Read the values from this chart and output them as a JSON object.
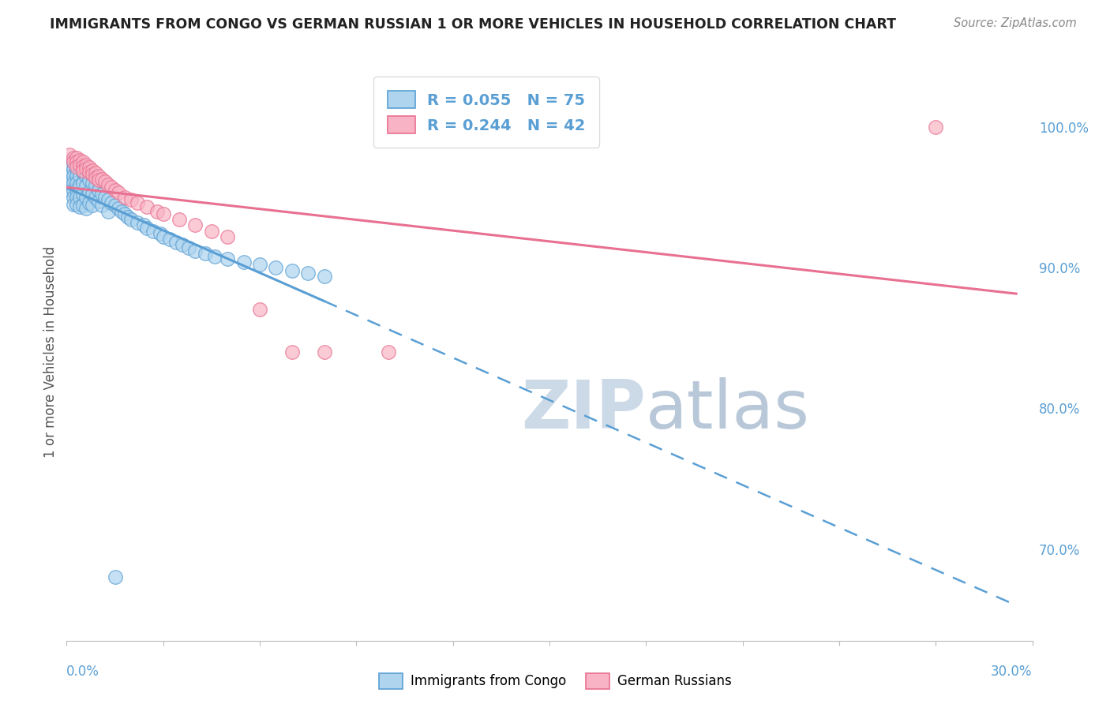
{
  "title": "IMMIGRANTS FROM CONGO VS GERMAN RUSSIAN 1 OR MORE VEHICLES IN HOUSEHOLD CORRELATION CHART",
  "source": "Source: ZipAtlas.com",
  "ylabel": "1 or more Vehicles in Household",
  "yticks": [
    0.7,
    0.8,
    0.9,
    1.0
  ],
  "ytick_labels": [
    "70.0%",
    "80.0%",
    "90.0%",
    "100.0%"
  ],
  "xlim": [
    0.0,
    0.3
  ],
  "ylim": [
    0.635,
    1.045
  ],
  "legend_R_blue": "R = 0.055",
  "legend_N_blue": "N = 75",
  "legend_R_pink": "R = 0.244",
  "legend_N_pink": "N = 42",
  "blue_fill": "#aed4ee",
  "blue_edge": "#5a9fd4",
  "pink_fill": "#f8b4c4",
  "pink_edge": "#e87090",
  "blue_line": "#5a9fd4",
  "pink_line": "#e87090",
  "watermark_color": "#ccdae8",
  "background_color": "#ffffff",
  "grid_color": "#cccccc",
  "blue_scatter_x": [
    0.001,
    0.001,
    0.001,
    0.001,
    0.001,
    0.002,
    0.002,
    0.002,
    0.002,
    0.002,
    0.002,
    0.002,
    0.003,
    0.003,
    0.003,
    0.003,
    0.003,
    0.003,
    0.003,
    0.004,
    0.004,
    0.004,
    0.004,
    0.004,
    0.005,
    0.005,
    0.005,
    0.005,
    0.006,
    0.006,
    0.006,
    0.006,
    0.007,
    0.007,
    0.007,
    0.008,
    0.008,
    0.008,
    0.009,
    0.009,
    0.01,
    0.01,
    0.011,
    0.011,
    0.012,
    0.013,
    0.013,
    0.014,
    0.015,
    0.016,
    0.017,
    0.018,
    0.019,
    0.02,
    0.022,
    0.024,
    0.025,
    0.027,
    0.029,
    0.03,
    0.032,
    0.034,
    0.036,
    0.038,
    0.04,
    0.043,
    0.046,
    0.05,
    0.055,
    0.06,
    0.065,
    0.07,
    0.075,
    0.08,
    0.015
  ],
  "blue_scatter_y": [
    0.975,
    0.97,
    0.965,
    0.96,
    0.955,
    0.975,
    0.97,
    0.965,
    0.96,
    0.955,
    0.95,
    0.945,
    0.975,
    0.97,
    0.965,
    0.96,
    0.955,
    0.95,
    0.945,
    0.972,
    0.965,
    0.958,
    0.95,
    0.943,
    0.968,
    0.96,
    0.952,
    0.944,
    0.965,
    0.958,
    0.95,
    0.942,
    0.962,
    0.954,
    0.946,
    0.96,
    0.952,
    0.944,
    0.958,
    0.95,
    0.955,
    0.947,
    0.952,
    0.944,
    0.95,
    0.948,
    0.94,
    0.946,
    0.944,
    0.942,
    0.94,
    0.938,
    0.936,
    0.934,
    0.932,
    0.93,
    0.928,
    0.926,
    0.924,
    0.922,
    0.92,
    0.918,
    0.916,
    0.914,
    0.912,
    0.91,
    0.908,
    0.906,
    0.904,
    0.902,
    0.9,
    0.898,
    0.896,
    0.894,
    0.68
  ],
  "pink_scatter_x": [
    0.001,
    0.002,
    0.002,
    0.003,
    0.003,
    0.003,
    0.004,
    0.004,
    0.005,
    0.005,
    0.005,
    0.006,
    0.006,
    0.007,
    0.007,
    0.008,
    0.008,
    0.009,
    0.009,
    0.01,
    0.01,
    0.011,
    0.012,
    0.013,
    0.014,
    0.015,
    0.016,
    0.018,
    0.02,
    0.022,
    0.025,
    0.028,
    0.03,
    0.035,
    0.04,
    0.045,
    0.05,
    0.06,
    0.07,
    0.08,
    0.1,
    0.27
  ],
  "pink_scatter_y": [
    0.98,
    0.978,
    0.975,
    0.978,
    0.975,
    0.972,
    0.976,
    0.973,
    0.975,
    0.972,
    0.969,
    0.973,
    0.97,
    0.971,
    0.968,
    0.969,
    0.966,
    0.967,
    0.964,
    0.965,
    0.962,
    0.963,
    0.961,
    0.959,
    0.957,
    0.955,
    0.953,
    0.95,
    0.948,
    0.946,
    0.943,
    0.94,
    0.938,
    0.934,
    0.93,
    0.926,
    0.922,
    0.87,
    0.84,
    0.84,
    0.84,
    1.0
  ]
}
